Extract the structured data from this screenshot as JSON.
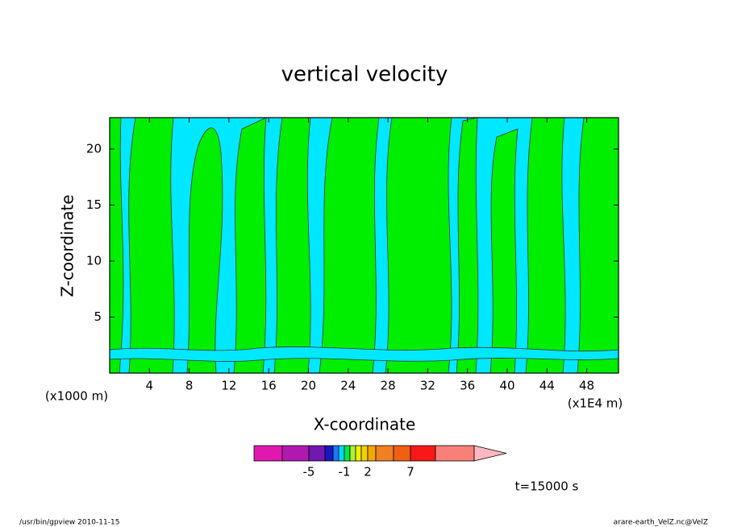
{
  "chart_data": {
    "type": "contour",
    "title": "vertical velocity",
    "x_label": "X-coordinate",
    "y_label": "Z-coordinate",
    "x_unit": "(x1E4 m)",
    "y_unit": "(x1000 m)",
    "xlim": [
      0,
      51.2
    ],
    "xticks": [
      4,
      8,
      12,
      16,
      20,
      24,
      28,
      32,
      36,
      40,
      44,
      48
    ],
    "ylim": [
      0,
      22.8
    ],
    "yticks": [
      5,
      10,
      15,
      20
    ],
    "colorbar": {
      "bounds": [
        -9,
        -7,
        -5,
        -4,
        -3,
        -2,
        -1,
        0,
        0.5,
        1,
        2,
        3,
        5,
        7,
        10,
        15
      ],
      "colors": [
        "#e018b0",
        "#b018b0",
        "#7018b0",
        "#1818c0",
        "#1878ff",
        "#00d8ff",
        "#00e840",
        "#b0f030",
        "#f0f000",
        "#f0d000",
        "#f0a800",
        "#f08020",
        "#f06010",
        "#f81818",
        "#f88078",
        "#ffb8c0"
      ],
      "ticks": [
        -5,
        -1,
        2,
        7
      ]
    },
    "time_label": "t=15000 s",
    "footer_left": "/usr/bin/gpview  2010-11-15",
    "footer_right": "arare-earth_VelZ.nc@VelZ"
  }
}
